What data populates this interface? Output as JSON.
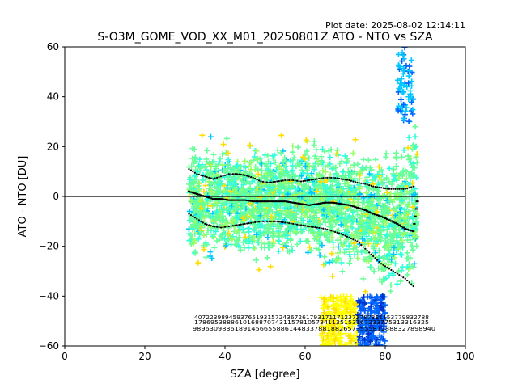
{
  "figure": {
    "plot_date": "Plot date: 2025-08-02 12:14:11",
    "title": "S-O3M_GOME_VOD_XX_M01_20250801Z ATO - NTO vs SZA"
  },
  "chart_data": {
    "type": "scatter",
    "title": "S-O3M_GOME_VOD_XX_M01_20250801Z ATO - NTO vs SZA",
    "xlabel": "SZA [degree]",
    "ylabel": "ATO - NTO [DU]",
    "xlim": [
      0,
      100
    ],
    "ylim": [
      -60,
      60
    ],
    "xticks": [
      "0",
      "20",
      "40",
      "60",
      "80",
      "100"
    ],
    "yticks": [
      "−60",
      "−40",
      "−20",
      "0",
      "20",
      "40",
      "60"
    ],
    "grid": false,
    "legend": "none",
    "marker": "+",
    "colormap": [
      "#0033cc",
      "#0066ff",
      "#00c8ff",
      "#33ffdd",
      "#66ff99",
      "#99ff66",
      "#ffdd00",
      "#ffff00",
      "#ff9900"
    ],
    "zero_line": 0,
    "scatter_envelope": {
      "sza": [
        31,
        35,
        40,
        45,
        50,
        55,
        60,
        65,
        70,
        75,
        80,
        85,
        88
      ],
      "upper": [
        27,
        30,
        32,
        32,
        30,
        30,
        30,
        32,
        30,
        30,
        30,
        38,
        45
      ],
      "lower": [
        -35,
        -35,
        -35,
        -35,
        -34,
        -32,
        -33,
        -36,
        -40,
        -45,
        -50,
        -50,
        -50
      ]
    },
    "series": [
      {
        "role": "mean",
        "x": [
          31,
          33,
          35,
          37,
          39,
          41,
          43,
          45,
          47,
          49,
          51,
          53,
          55,
          57,
          59,
          61,
          63,
          65,
          67,
          69,
          71,
          73,
          75,
          77,
          79,
          81,
          83,
          85,
          87,
          88
        ],
        "y": [
          2,
          1,
          0,
          -1,
          -1,
          -1.5,
          -1.5,
          -1.5,
          -2,
          -2,
          -2,
          -2,
          -2,
          -2.5,
          -3,
          -3.5,
          -3,
          -2.5,
          -2.5,
          -3,
          -3.5,
          -4.5,
          -5.5,
          -7,
          -8,
          -9.5,
          -11,
          -13,
          -14,
          -2
        ]
      },
      {
        "role": "mean_plus_std",
        "x": [
          31,
          33,
          35,
          37,
          39,
          41,
          43,
          45,
          47,
          49,
          51,
          53,
          55,
          57,
          59,
          61,
          63,
          65,
          67,
          69,
          71,
          73,
          75,
          77,
          79,
          81,
          83,
          85,
          87
        ],
        "y": [
          11,
          9,
          8,
          7,
          8,
          9,
          9,
          8.5,
          7.5,
          6,
          5.5,
          6,
          6.5,
          6.5,
          6,
          6.5,
          7,
          7.5,
          7.5,
          7,
          6.5,
          5.5,
          5,
          4,
          3.5,
          3,
          3,
          3,
          4
        ]
      },
      {
        "role": "mean_minus_std",
        "x": [
          31,
          33,
          35,
          37,
          39,
          41,
          43,
          45,
          47,
          49,
          51,
          53,
          55,
          57,
          59,
          61,
          63,
          65,
          67,
          69,
          71,
          73,
          75,
          77,
          79,
          81,
          83,
          85,
          87
        ],
        "y": [
          -7,
          -9,
          -11,
          -12,
          -12.5,
          -12,
          -11.5,
          -11,
          -10.5,
          -10,
          -10,
          -10,
          -10.5,
          -11,
          -11.5,
          -12,
          -12.5,
          -13,
          -14,
          -15,
          -16.5,
          -18,
          -21,
          -24,
          -27,
          -29,
          -31,
          -33,
          -36
        ]
      }
    ],
    "bin_counts": {
      "row1": "4072239894593765193157243672617931711712372787331153779832788",
      "row2": "1786953888610168870743115781057341135153167233775313316325",
      "row3": "9896309836189145665588614483378818826573555812888327898940"
    }
  }
}
